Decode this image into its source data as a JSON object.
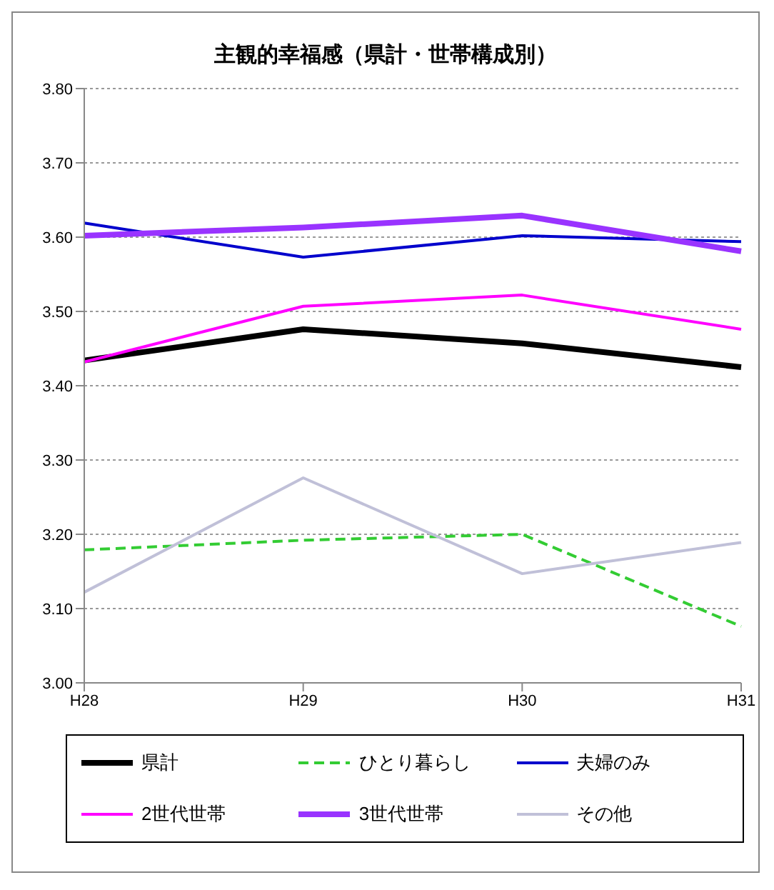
{
  "chart_data": {
    "type": "line",
    "title": "主観的幸福感（県計・世帯構成別）",
    "categories": [
      "H28",
      "H29",
      "H30",
      "H31"
    ],
    "series": [
      {
        "name": "県計",
        "color": "#000000",
        "values": [
          3.434,
          3.476,
          3.457,
          3.425
        ]
      },
      {
        "name": "ひとり暮らし",
        "color": "#33cc33",
        "line_style": "dashed",
        "values": [
          3.179,
          3.192,
          3.2,
          3.076
        ]
      },
      {
        "name": "夫婦のみ",
        "color": "#0000cc",
        "values": [
          3.619,
          3.573,
          3.602,
          3.594
        ]
      },
      {
        "name": "2世代世帯",
        "color": "#ff00ff",
        "values": [
          3.432,
          3.507,
          3.522,
          3.476
        ]
      },
      {
        "name": "3世代世帯",
        "color": "#9933ff",
        "values": [
          3.602,
          3.613,
          3.629,
          3.581
        ]
      },
      {
        "name": "その他",
        "color": "#c0c0d8",
        "values": [
          3.122,
          3.276,
          3.147,
          3.189
        ]
      }
    ],
    "ylim": [
      3.0,
      3.8
    ],
    "yticks": [
      {
        "value": 3.0,
        "label": "3.00"
      },
      {
        "value": 3.1,
        "label": "3.10"
      },
      {
        "value": 3.2,
        "label": "3.20"
      },
      {
        "value": 3.3,
        "label": "3.30"
      },
      {
        "value": 3.4,
        "label": "3.40"
      },
      {
        "value": 3.5,
        "label": "3.50"
      },
      {
        "value": 3.6,
        "label": "3.60"
      },
      {
        "value": 3.7,
        "label": "3.70"
      },
      {
        "value": 3.8,
        "label": "3.80"
      }
    ],
    "grid": "y",
    "legend": "bottom",
    "marker": "none",
    "line_style": "solid"
  }
}
